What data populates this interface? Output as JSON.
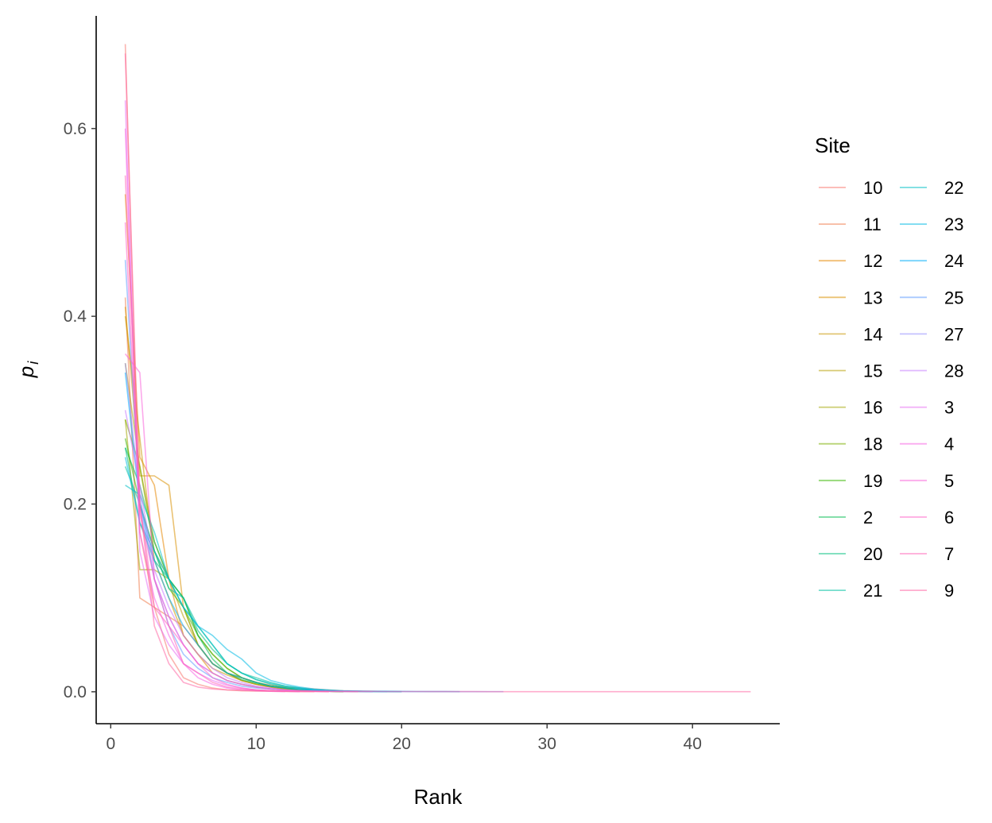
{
  "chart_data": {
    "type": "line",
    "xlabel": "Rank",
    "ylabel": {
      "main": "p",
      "sub": "i"
    },
    "xlim": [
      -1,
      46
    ],
    "ylim": [
      -0.034,
      0.72
    ],
    "x_ticks": [
      0,
      10,
      20,
      30,
      40
    ],
    "x_tick_labels": [
      "0",
      "10",
      "20",
      "30",
      "40"
    ],
    "y_ticks": [
      0.0,
      0.2,
      0.4,
      0.6
    ],
    "y_tick_labels": [
      "0.0",
      "0.2",
      "0.4",
      "0.6"
    ],
    "grid": false,
    "legend": {
      "title": "Site",
      "placement": "right",
      "columns": 2
    },
    "line_alpha": 0.55,
    "series": [
      {
        "name": "10",
        "color": "#F8766D",
        "values": [
          0.69,
          0.17,
          0.09,
          0.04,
          0.015,
          0.008,
          0.004,
          0.002,
          0.001,
          0.0008,
          0.0005,
          0.0003,
          0.0002,
          0.0001
        ]
      },
      {
        "name": "11",
        "color": "#F07E4E",
        "values": [
          0.42,
          0.1,
          0.09,
          0.08,
          0.07,
          0.05,
          0.03,
          0.02,
          0.015,
          0.01,
          0.007,
          0.005,
          0.004,
          0.003,
          0.002,
          0.001,
          0.0008,
          0.0005,
          0.0003,
          0.0001
        ]
      },
      {
        "name": "12",
        "color": "#E58700",
        "values": [
          0.53,
          0.25,
          0.22,
          0.12,
          0.06,
          0.04,
          0.02,
          0.012,
          0.008,
          0.005,
          0.003,
          0.002,
          0.001,
          0.0005,
          0.0002
        ]
      },
      {
        "name": "13",
        "color": "#D89000",
        "values": [
          0.41,
          0.23,
          0.23,
          0.22,
          0.09,
          0.05,
          0.03,
          0.02,
          0.012,
          0.008,
          0.005,
          0.003,
          0.002,
          0.001,
          0.0005,
          0.0002
        ]
      },
      {
        "name": "14",
        "color": "#C99800",
        "values": [
          0.4,
          0.27,
          0.14,
          0.1,
          0.06,
          0.04,
          0.025,
          0.018,
          0.012,
          0.008,
          0.005,
          0.003,
          0.002,
          0.001,
          0.0008,
          0.0005,
          0.0003,
          0.0001
        ]
      },
      {
        "name": "15",
        "color": "#B79F00",
        "values": [
          0.35,
          0.24,
          0.16,
          0.12,
          0.08,
          0.05,
          0.03,
          0.02,
          0.012,
          0.008,
          0.005,
          0.003,
          0.002,
          0.001,
          0.0005,
          0.0002
        ]
      },
      {
        "name": "16",
        "color": "#A3A500",
        "values": [
          0.29,
          0.13,
          0.13,
          0.12,
          0.1,
          0.06,
          0.04,
          0.025,
          0.015,
          0.01,
          0.006,
          0.004,
          0.002,
          0.001,
          0.0005,
          0.0002
        ]
      },
      {
        "name": "18",
        "color": "#7CAE00",
        "values": [
          0.29,
          0.24,
          0.15,
          0.12,
          0.09,
          0.05,
          0.03,
          0.02,
          0.015,
          0.01,
          0.006,
          0.004,
          0.002,
          0.001,
          0.0005,
          0.0002
        ]
      },
      {
        "name": "19",
        "color": "#39B600",
        "values": [
          0.27,
          0.2,
          0.15,
          0.11,
          0.09,
          0.06,
          0.04,
          0.025,
          0.015,
          0.01,
          0.006,
          0.004,
          0.002,
          0.001,
          0.0005,
          0.0003,
          0.0001
        ]
      },
      {
        "name": "2",
        "color": "#00BB4E",
        "values": [
          0.26,
          0.22,
          0.16,
          0.12,
          0.1,
          0.06,
          0.035,
          0.02,
          0.013,
          0.009,
          0.006,
          0.004,
          0.002,
          0.001,
          0.0005,
          0.0002
        ]
      },
      {
        "name": "20",
        "color": "#00BF7D",
        "values": [
          0.26,
          0.18,
          0.14,
          0.12,
          0.1,
          0.065,
          0.045,
          0.03,
          0.02,
          0.013,
          0.008,
          0.005,
          0.003,
          0.002,
          0.001,
          0.0008,
          0.0005,
          0.0003,
          0.0002,
          0.0001
        ]
      },
      {
        "name": "21",
        "color": "#00C1A3",
        "values": [
          0.24,
          0.2,
          0.15,
          0.11,
          0.1,
          0.07,
          0.05,
          0.03,
          0.02,
          0.015,
          0.01,
          0.006,
          0.004,
          0.002,
          0.001,
          0.0006,
          0.0003,
          0.0001
        ]
      },
      {
        "name": "22",
        "color": "#00BFC4",
        "values": [
          0.22,
          0.21,
          0.17,
          0.12,
          0.09,
          0.07,
          0.05,
          0.03,
          0.02,
          0.013,
          0.009,
          0.006,
          0.004,
          0.002,
          0.001,
          0.0008,
          0.0005,
          0.0003,
          0.0001
        ]
      },
      {
        "name": "23",
        "color": "#00B9E3",
        "values": [
          0.25,
          0.18,
          0.15,
          0.12,
          0.09,
          0.07,
          0.06,
          0.045,
          0.035,
          0.02,
          0.012,
          0.008,
          0.005,
          0.003,
          0.002,
          0.001,
          0.0008,
          0.0006,
          0.0005,
          0.0004,
          0.0003,
          0.0002,
          0.0002,
          0.0001
        ]
      },
      {
        "name": "24",
        "color": "#00ADFA",
        "values": [
          0.34,
          0.2,
          0.14,
          0.1,
          0.07,
          0.05,
          0.03,
          0.02,
          0.015,
          0.01,
          0.006,
          0.004,
          0.003,
          0.002,
          0.001,
          0.0008,
          0.0005,
          0.0003,
          0.0002,
          0.0001
        ]
      },
      {
        "name": "25",
        "color": "#619CFF",
        "values": [
          0.46,
          0.2,
          0.12,
          0.07,
          0.04,
          0.025,
          0.015,
          0.01,
          0.006,
          0.004,
          0.003,
          0.002,
          0.0015,
          0.001,
          0.0008,
          0.0006,
          0.0005,
          0.0004,
          0.0003,
          0.0003,
          0.0002,
          0.0002,
          0.0002,
          0.0001,
          0.0001,
          0.0001,
          0.0001
        ]
      },
      {
        "name": "27",
        "color": "#9590FF",
        "values": [
          0.35,
          0.21,
          0.12,
          0.08,
          0.05,
          0.03,
          0.02,
          0.012,
          0.008,
          0.005,
          0.003,
          0.002,
          0.001,
          0.0008,
          0.0005,
          0.0003,
          0.0002,
          0.0001
        ]
      },
      {
        "name": "28",
        "color": "#C77CFF",
        "values": [
          0.3,
          0.22,
          0.13,
          0.09,
          0.06,
          0.04,
          0.025,
          0.015,
          0.01,
          0.006,
          0.004,
          0.002,
          0.001,
          0.0005,
          0.0002
        ]
      },
      {
        "name": "3",
        "color": "#E76BF3",
        "values": [
          0.63,
          0.15,
          0.08,
          0.05,
          0.03,
          0.02,
          0.012,
          0.007,
          0.004,
          0.002,
          0.001,
          0.0005,
          0.0002
        ]
      },
      {
        "name": "4",
        "color": "#F564E3",
        "values": [
          0.6,
          0.17,
          0.1,
          0.06,
          0.03,
          0.015,
          0.008,
          0.004,
          0.002,
          0.001,
          0.0005,
          0.0002
        ]
      },
      {
        "name": "5",
        "color": "#FA62DB",
        "values": [
          0.36,
          0.34,
          0.12,
          0.08,
          0.05,
          0.03,
          0.02,
          0.012,
          0.008,
          0.005,
          0.003,
          0.002,
          0.001,
          0.0005,
          0.0003,
          0.0002,
          0.0001
        ]
      },
      {
        "name": "6",
        "color": "#FF61C9",
        "values": [
          0.5,
          0.19,
          0.12,
          0.07,
          0.05,
          0.03,
          0.015,
          0.008,
          0.004,
          0.002,
          0.001,
          0.0005,
          0.0002
        ]
      },
      {
        "name": "7",
        "color": "#FF63B6",
        "values": [
          0.55,
          0.2,
          0.09,
          0.07,
          0.03,
          0.02,
          0.01,
          0.005,
          0.003,
          0.002,
          0.001,
          0.0005,
          0.0003,
          0.0002,
          0.0001
        ]
      },
      {
        "name": "9",
        "color": "#FF67A4",
        "values": [
          0.68,
          0.2,
          0.07,
          0.03,
          0.01,
          0.005,
          0.003,
          0.002,
          0.0015,
          0.0012,
          0.001,
          0.0008,
          0.0007,
          0.0006,
          0.0005,
          0.0005,
          0.0004,
          0.0004,
          0.0003,
          0.0003,
          0.0003,
          0.0002,
          0.0002,
          0.0002,
          0.0002,
          0.0001,
          0.0001,
          0.0001,
          0.0001,
          0.0001,
          0.0001,
          0.0001,
          0.0001,
          0.0001,
          0.0001,
          0.0001,
          0.0001,
          0.0001,
          0.0001,
          0.0001,
          0.0001,
          0.0001,
          0.0001,
          0.0001
        ]
      }
    ]
  }
}
